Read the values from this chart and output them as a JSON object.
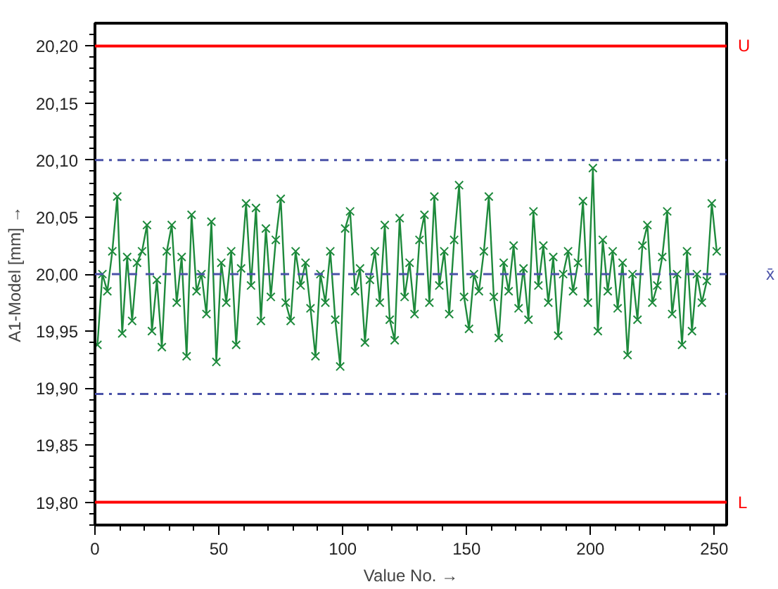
{
  "chart_data": {
    "type": "line",
    "xlabel": "Value No. →",
    "ylabel": "A1-Model [mm] →",
    "color": "#1e8a3c",
    "marker": "cross",
    "line_style": "solid",
    "grid": false,
    "xlim": [
      0,
      255
    ],
    "xticks": [
      0,
      50,
      100,
      150,
      200,
      250
    ],
    "ylim": [
      19.78,
      20.22
    ],
    "yticks": [
      {
        "value": 19.8,
        "label": "19,80"
      },
      {
        "value": 19.85,
        "label": "19,85"
      },
      {
        "value": 19.9,
        "label": "19,90"
      },
      {
        "value": 19.95,
        "label": "19,95"
      },
      {
        "value": 20.0,
        "label": "20,00"
      },
      {
        "value": 20.05,
        "label": "20,05"
      },
      {
        "value": 20.1,
        "label": "20,10"
      },
      {
        "value": 20.15,
        "label": "20,15"
      },
      {
        "value": 20.2,
        "label": "20,20"
      }
    ],
    "ref_lines": [
      {
        "axis": "y",
        "value": 20.2,
        "label": "U",
        "color": "#ff0000",
        "line_style": "solid"
      },
      {
        "axis": "y",
        "value": 19.8,
        "label": "L",
        "color": "#ff0000",
        "line_style": "solid"
      },
      {
        "axis": "y",
        "value": 20.1,
        "label": null,
        "color": "#4a52a8",
        "line_style": "dashdot"
      },
      {
        "axis": "y",
        "value": 19.895,
        "label": null,
        "color": "#4a52a8",
        "line_style": "dashdot"
      },
      {
        "axis": "y",
        "value": 20.0,
        "label": "x̄",
        "color": "#4a52a8",
        "line_style": "dashed"
      }
    ],
    "x": [
      1,
      3,
      5,
      7,
      9,
      11,
      13,
      15,
      17,
      19,
      21,
      23,
      25,
      27,
      29,
      31,
      33,
      35,
      37,
      39,
      41,
      43,
      45,
      47,
      49,
      51,
      53,
      55,
      57,
      59,
      61,
      63,
      65,
      67,
      69,
      71,
      73,
      75,
      77,
      79,
      81,
      83,
      85,
      87,
      89,
      91,
      93,
      95,
      97,
      99,
      101,
      103,
      105,
      107,
      109,
      111,
      113,
      115,
      117,
      119,
      121,
      123,
      125,
      127,
      129,
      131,
      133,
      135,
      137,
      139,
      141,
      143,
      145,
      147,
      149,
      151,
      153,
      155,
      157,
      159,
      161,
      163,
      165,
      167,
      169,
      171,
      173,
      175,
      177,
      179,
      181,
      183,
      185,
      187,
      189,
      191,
      193,
      195,
      197,
      199,
      201,
      203,
      205,
      207,
      209,
      211,
      213,
      215,
      217,
      219,
      221,
      223,
      225,
      227,
      229,
      231,
      233,
      235,
      237,
      239,
      241,
      243,
      245,
      247,
      249,
      251
    ],
    "values": [
      19.938,
      20.0,
      19.985,
      20.02,
      20.068,
      19.948,
      20.015,
      19.959,
      20.01,
      20.02,
      20.043,
      19.95,
      19.995,
      19.936,
      20.02,
      20.043,
      19.975,
      20.015,
      19.928,
      20.052,
      19.985,
      20.0,
      19.965,
      20.046,
      19.923,
      20.01,
      19.975,
      20.02,
      19.938,
      20.005,
      20.062,
      19.99,
      20.058,
      19.959,
      20.04,
      19.98,
      20.03,
      20.066,
      19.975,
      19.959,
      20.02,
      19.99,
      20.01,
      19.97,
      19.928,
      20.0,
      19.975,
      20.02,
      19.96,
      19.919,
      20.04,
      20.055,
      19.985,
      20.005,
      19.94,
      19.995,
      20.02,
      19.975,
      20.043,
      19.96,
      19.942,
      20.049,
      19.98,
      20.01,
      19.965,
      20.03,
      20.052,
      19.975,
      20.068,
      19.99,
      20.02,
      19.965,
      20.03,
      20.078,
      19.98,
      19.952,
      20.0,
      19.985,
      20.02,
      20.068,
      19.98,
      19.944,
      20.01,
      19.985,
      20.025,
      19.97,
      20.005,
      19.96,
      20.055,
      19.99,
      20.025,
      19.975,
      20.015,
      19.946,
      20.0,
      20.02,
      19.985,
      20.01,
      20.064,
      19.975,
      20.093,
      19.95,
      20.03,
      19.985,
      20.02,
      19.97,
      20.01,
      19.929,
      20.0,
      19.96,
      20.025,
      20.043,
      19.975,
      19.99,
      20.015,
      20.055,
      19.965,
      20.0,
      19.938,
      20.02,
      19.95,
      20.0,
      19.975,
      19.994,
      20.062,
      20.02
    ]
  }
}
